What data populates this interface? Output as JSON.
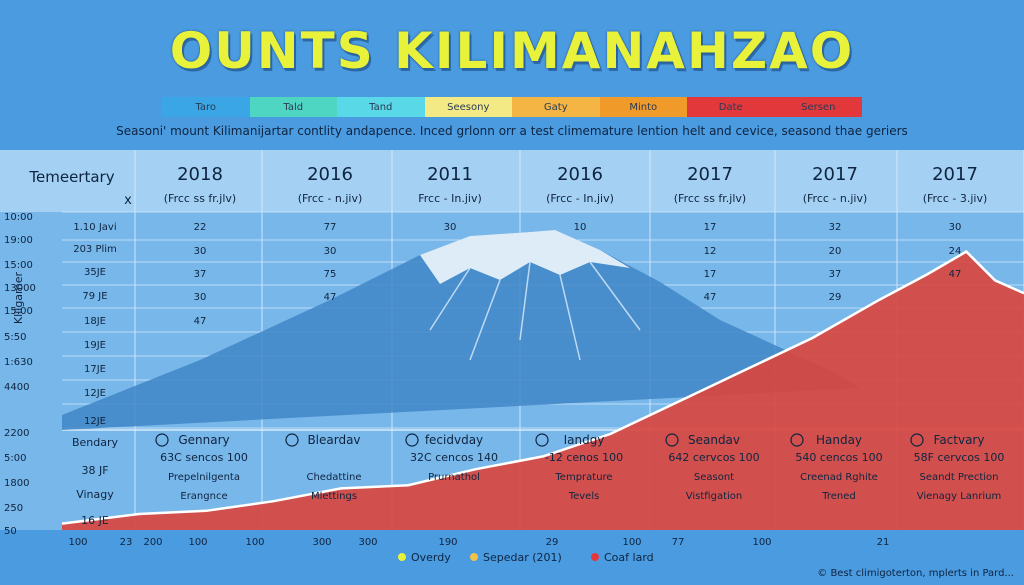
{
  "page": {
    "title": "OUNTS KILIMANAHZAO",
    "subtitle": "Seasoni' mount Kilimanijartar contlity andapence. Inced grlonn orr a test climemature lention helt and cevice, seasond thae geriers",
    "legend_strip": [
      {
        "label": "Taro",
        "color": "#3aa6e6"
      },
      {
        "label": "Tald",
        "color": "#4fd6c2"
      },
      {
        "label": "Tand",
        "color": "#59d8e8"
      },
      {
        "label": "Seesony",
        "color": "#f3ea86"
      },
      {
        "label": "Gaty",
        "color": "#f5b545"
      },
      {
        "label": "Minto",
        "color": "#f09a2a"
      },
      {
        "label": "Date",
        "color": "#e2383c"
      },
      {
        "label": "Sersen",
        "color": "#e2383c"
      }
    ],
    "credit": "© Best climigoterton, mplerts in Pard...",
    "colors": {
      "background": "#4a9be0",
      "panel": "#9fcdf2",
      "mountain": "#3f86c7",
      "area_fill": "#d9473f",
      "title": "#e8f23a"
    }
  },
  "chart_data": {
    "type": "area",
    "title": "OUNTS KILIMANAHZAO",
    "ylabel": "Klilgamer",
    "table_header_label": "Temeertary",
    "close_mark": "x",
    "years": [
      "2018",
      "2016",
      "2011",
      "2016",
      "2017",
      "2017",
      "2017"
    ],
    "units": [
      "(Frcc ss fr.jlv)",
      "(Frcc - n.jiv)",
      "Frcc - In.jiv)",
      "(Frcc - In.jiv)",
      "(Frcc ss fr.jlv)",
      "(Frcc - n.jiv)",
      "(Frcc - 3.jiv)"
    ],
    "y_ticks": [
      "10:00",
      "19:00",
      "15:00",
      "13000",
      "15:00",
      "5:50",
      "1:630",
      "4400",
      "2200",
      "5:00",
      "1800",
      "250",
      "50"
    ],
    "row_labels": [
      "1.10 Javi",
      "203 Plim",
      "35JE",
      "79 JE",
      "18JE",
      "19JE",
      "17JE",
      "12JE",
      "12JE"
    ],
    "table_values": [
      [
        "22",
        "77",
        "30",
        "10",
        "17",
        "32",
        "30"
      ],
      [
        "30",
        "30",
        "",
        "",
        "12",
        "20",
        "24"
      ],
      [
        "37",
        "75",
        "",
        "",
        "17",
        "37",
        "47"
      ],
      [
        "30",
        "47",
        "",
        "",
        "47",
        "29",
        ""
      ],
      [
        "47",
        "",
        "",
        "",
        "",
        "",
        ""
      ]
    ],
    "lower_row_labels": [
      "Bendary",
      "38 JF",
      "Vinagy",
      "16 JE"
    ],
    "lower_panels": [
      {
        "name": "Gennary",
        "values": "63C  sencos  100",
        "line3": "Prepelnilgenta",
        "line4": "Erangnce"
      },
      {
        "name": "Bleardav",
        "values": "",
        "line3": "Chedattine",
        "line4": "Mlettings"
      },
      {
        "name": "fecidvday",
        "values": "32C  cencos  140",
        "line3": "Prurnathol",
        "line4": ""
      },
      {
        "name": "Iandgy",
        "values": "-12   cenos  100",
        "line3": "Temprature",
        "line4": "Tevels"
      },
      {
        "name": "Seandav",
        "values": "642  cervcos  100",
        "line3": "Seasont",
        "line4": "Vistfigation"
      },
      {
        "name": "Handay",
        "values": "540  cencos  100",
        "line3": "Creenad Rghite",
        "line4": "Trened"
      },
      {
        "name": "Factvary",
        "values": "58F  cervcos  100",
        "line3": "Seandt Prection",
        "line4": "Vienagy Lanrium"
      }
    ],
    "x_ticks": [
      "100",
      "23",
      "200",
      "100",
      "100",
      "300",
      "300",
      "190",
      "29",
      "100",
      "77",
      "100",
      "21"
    ],
    "legend": [
      {
        "label": "Overdy",
        "color": "#e8f23a"
      },
      {
        "label": "Sepedar (201)",
        "color": "#f0c24a"
      },
      {
        "label": "Coaf lard",
        "color": "#e2383c"
      }
    ],
    "x": [
      0,
      0.08,
      0.15,
      0.22,
      0.29,
      0.36,
      0.43,
      0.5,
      0.57,
      0.64,
      0.71,
      0.78,
      0.85,
      0.9,
      0.94,
      0.97,
      1.0
    ],
    "series": [
      {
        "name": "Coaf lard",
        "values": [
          2,
          5,
          6,
          9,
          13,
          14,
          19,
          23,
          30,
          40,
          50,
          60,
          72,
          80,
          87,
          78,
          74
        ]
      }
    ],
    "ylim": [
      0,
      100
    ],
    "grid": true
  }
}
